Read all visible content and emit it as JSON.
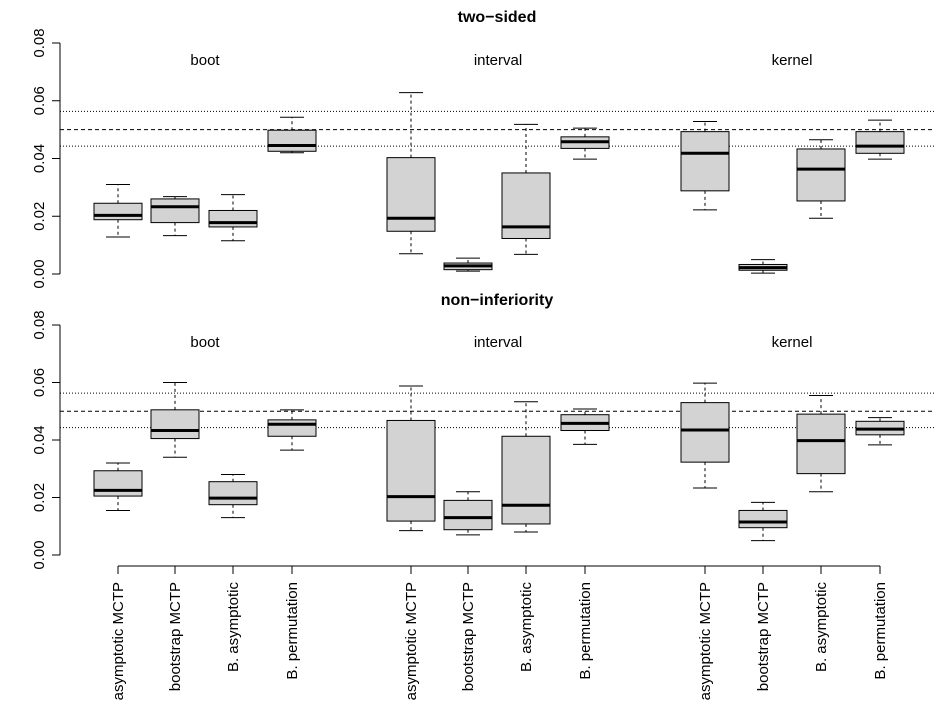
{
  "chart_data": [
    {
      "type": "boxplot",
      "title": "two−sided",
      "ylim": [
        0,
        0.08
      ],
      "yticks": [
        "0.00",
        "0.02",
        "0.04",
        "0.06",
        "0.08"
      ],
      "reference_lines": [
        {
          "value": 0.05,
          "style": "dashed"
        },
        {
          "value": 0.0443,
          "style": "dotted"
        },
        {
          "value": 0.0563,
          "style": "dotted"
        }
      ],
      "groups": [
        {
          "label": "boot",
          "boxes": [
            {
              "method": "asymptotic MCTP",
              "whisker_low": 0.0128,
              "q1": 0.0188,
              "median": 0.0203,
              "q3": 0.0245,
              "whisker_high": 0.031
            },
            {
              "method": "bootstrap MCTP",
              "whisker_low": 0.0133,
              "q1": 0.0178,
              "median": 0.0233,
              "q3": 0.026,
              "whisker_high": 0.0268
            },
            {
              "method": "B. asymptotic",
              "whisker_low": 0.0115,
              "q1": 0.0163,
              "median": 0.0178,
              "q3": 0.022,
              "whisker_high": 0.0275
            },
            {
              "method": "B. permutation",
              "whisker_low": 0.042,
              "q1": 0.0425,
              "median": 0.0445,
              "q3": 0.0498,
              "whisker_high": 0.0543
            }
          ]
        },
        {
          "label": "interval",
          "boxes": [
            {
              "method": "asymptotic MCTP",
              "whisker_low": 0.007,
              "q1": 0.0148,
              "median": 0.0193,
              "q3": 0.0403,
              "whisker_high": 0.0628
            },
            {
              "method": "bootstrap MCTP",
              "whisker_low": 0.001,
              "q1": 0.0015,
              "median": 0.0028,
              "q3": 0.0038,
              "whisker_high": 0.0055
            },
            {
              "method": "B. asymptotic",
              "whisker_low": 0.0068,
              "q1": 0.0123,
              "median": 0.0163,
              "q3": 0.035,
              "whisker_high": 0.0518
            },
            {
              "method": "B. permutation",
              "whisker_low": 0.0398,
              "q1": 0.0435,
              "median": 0.0458,
              "q3": 0.0475,
              "whisker_high": 0.0505
            }
          ]
        },
        {
          "label": "kernel",
          "boxes": [
            {
              "method": "asymptotic MCTP",
              "whisker_low": 0.0222,
              "q1": 0.0288,
              "median": 0.0418,
              "q3": 0.0493,
              "whisker_high": 0.0528
            },
            {
              "method": "bootstrap MCTP",
              "whisker_low": 0.0003,
              "q1": 0.0013,
              "median": 0.0022,
              "q3": 0.0033,
              "whisker_high": 0.005
            },
            {
              "method": "B. asymptotic",
              "whisker_low": 0.0193,
              "q1": 0.0253,
              "median": 0.0363,
              "q3": 0.0433,
              "whisker_high": 0.0465
            },
            {
              "method": "B. permutation",
              "whisker_low": 0.0398,
              "q1": 0.0418,
              "median": 0.0443,
              "q3": 0.0493,
              "whisker_high": 0.0533
            }
          ]
        }
      ]
    },
    {
      "type": "boxplot",
      "title": "non−inferiority",
      "ylim": [
        0,
        0.08
      ],
      "yticks": [
        "0.00",
        "0.02",
        "0.04",
        "0.06",
        "0.08"
      ],
      "reference_lines": [
        {
          "value": 0.05,
          "style": "dashed"
        },
        {
          "value": 0.0443,
          "style": "dotted"
        },
        {
          "value": 0.0563,
          "style": "dotted"
        }
      ],
      "groups": [
        {
          "label": "boot",
          "boxes": [
            {
              "method": "asymptotic MCTP",
              "whisker_low": 0.0155,
              "q1": 0.0205,
              "median": 0.0225,
              "q3": 0.0293,
              "whisker_high": 0.032
            },
            {
              "method": "bootstrap MCTP",
              "whisker_low": 0.034,
              "q1": 0.0405,
              "median": 0.0433,
              "q3": 0.0505,
              "whisker_high": 0.06
            },
            {
              "method": "B. asymptotic",
              "whisker_low": 0.013,
              "q1": 0.0175,
              "median": 0.0198,
              "q3": 0.0255,
              "whisker_high": 0.028
            },
            {
              "method": "B. permutation",
              "whisker_low": 0.0365,
              "q1": 0.0413,
              "median": 0.0455,
              "q3": 0.047,
              "whisker_high": 0.0505
            }
          ]
        },
        {
          "label": "interval",
          "boxes": [
            {
              "method": "asymptotic MCTP",
              "whisker_low": 0.0085,
              "q1": 0.0118,
              "median": 0.0203,
              "q3": 0.0468,
              "whisker_high": 0.0588
            },
            {
              "method": "bootstrap MCTP",
              "whisker_low": 0.007,
              "q1": 0.0088,
              "median": 0.013,
              "q3": 0.019,
              "whisker_high": 0.022
            },
            {
              "method": "B. asymptotic",
              "whisker_low": 0.008,
              "q1": 0.0108,
              "median": 0.0173,
              "q3": 0.0413,
              "whisker_high": 0.0533
            },
            {
              "method": "B. permutation",
              "whisker_low": 0.0385,
              "q1": 0.0433,
              "median": 0.0458,
              "q3": 0.0488,
              "whisker_high": 0.0508
            }
          ]
        },
        {
          "label": "kernel",
          "boxes": [
            {
              "method": "asymptotic MCTP",
              "whisker_low": 0.0233,
              "q1": 0.0323,
              "median": 0.0435,
              "q3": 0.053,
              "whisker_high": 0.0598
            },
            {
              "method": "bootstrap MCTP",
              "whisker_low": 0.005,
              "q1": 0.0095,
              "median": 0.0115,
              "q3": 0.0155,
              "whisker_high": 0.0183
            },
            {
              "method": "B. asymptotic",
              "whisker_low": 0.022,
              "q1": 0.0283,
              "median": 0.0398,
              "q3": 0.049,
              "whisker_high": 0.0555
            },
            {
              "method": "B. permutation",
              "whisker_low": 0.0383,
              "q1": 0.0418,
              "median": 0.0438,
              "q3": 0.0465,
              "whisker_high": 0.0478
            }
          ]
        }
      ]
    }
  ],
  "x_axis": {
    "tick_labels": [
      "asymptotic MCTP",
      "bootstrap MCTP",
      "B. asymptotic",
      "B. permutation",
      "asymptotic MCTP",
      "bootstrap MCTP",
      "B. asymptotic",
      "B. permutation",
      "asymptotic MCTP",
      "bootstrap MCTP",
      "B. asymptotic",
      "B. permutation"
    ]
  },
  "colors": {
    "box_fill": "#d3d3d3",
    "line": "#000000"
  }
}
